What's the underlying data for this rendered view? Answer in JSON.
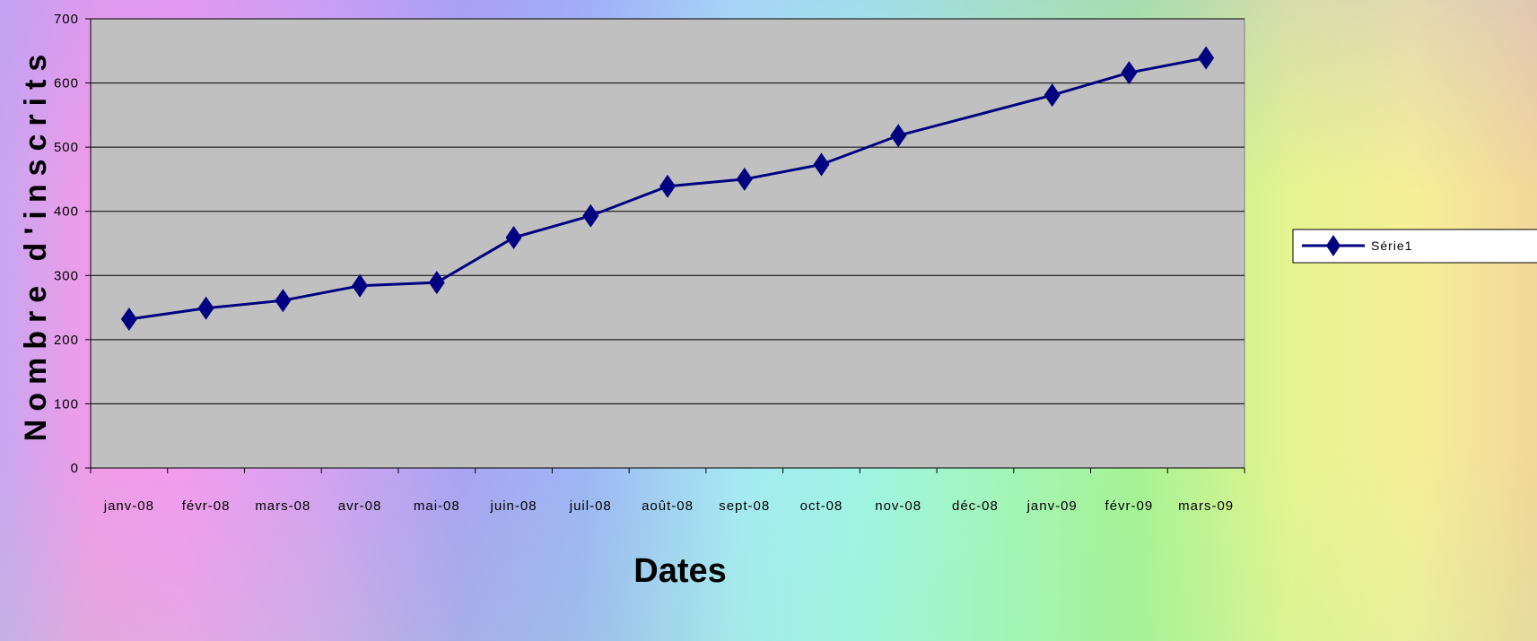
{
  "chart_data": {
    "type": "line",
    "title": "",
    "xlabel": "Dates",
    "ylabel": "Nombre d'inscrits",
    "ylim": [
      0,
      700
    ],
    "yticks": [
      "0",
      "100",
      "200",
      "300",
      "400",
      "500",
      "600",
      "700"
    ],
    "categories": [
      "janv-08",
      "févr-08",
      "mars-08",
      "avr-08",
      "mai-08",
      "juin-08",
      "juil-08",
      "août-08",
      "sept-08",
      "oct-08",
      "nov-08",
      "déc-08",
      "janv-09",
      "févr-09",
      "mars-09"
    ],
    "series": [
      {
        "name": "Série1",
        "values": [
          232,
          249,
          261,
          284,
          289,
          359,
          393,
          439,
          450,
          473,
          518,
          null,
          581,
          616,
          639
        ]
      }
    ],
    "grid": true,
    "legend_position": "right",
    "colors": {
      "line": "#000080",
      "plot_background": "#c0c0c0",
      "gridline": "#000000"
    }
  }
}
